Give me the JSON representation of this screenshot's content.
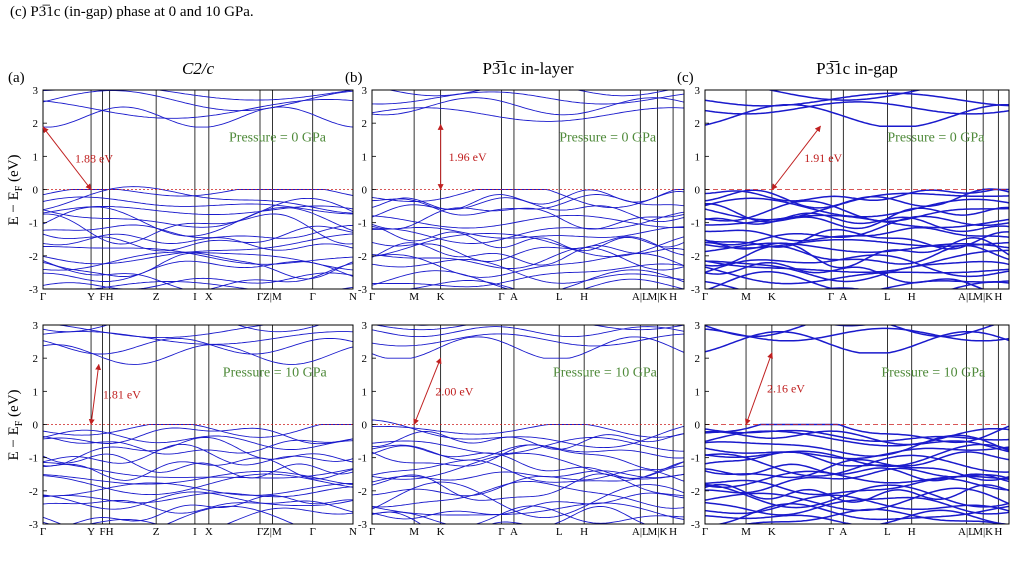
{
  "caption_top": "(c) P3̅1c (in-gap) phase at 0 and 10 GPa.",
  "caption_bottom": "",
  "ylabel": "E − E",
  "ylabel_sub": "F",
  "ylabel_unit": " (eV)",
  "colors": {
    "band": "#1a1acc",
    "fermi": "#cc2020",
    "arrow": "#c02020",
    "pressure": "#4f8a3a"
  },
  "columns": [
    {
      "letter": "(a)",
      "title": "C2/c",
      "title_italic": true
    },
    {
      "letter": "(b)",
      "title": "P3̅1c in-layer",
      "title_italic": false
    },
    {
      "letter": "(c)",
      "title": "P3̅1c in-gap",
      "title_italic": false
    }
  ],
  "chart_data": [
    {
      "type": "line",
      "panel": "a-0GPa",
      "ylim": [
        -3,
        3
      ],
      "yticks": [
        -3,
        -2,
        -1,
        0,
        1,
        2,
        3
      ],
      "kpath": [
        "Γ",
        "Y",
        "F",
        "H",
        "Z",
        "I",
        "X",
        "Γ",
        "Z|M",
        "Γ",
        "N"
      ],
      "annotation": "Pressure = 0 GPa",
      "gap_label": "1.88 eV",
      "gap_eV": 1.88
    },
    {
      "type": "line",
      "panel": "b-0GPa",
      "ylim": [
        -3,
        3
      ],
      "yticks": [
        -3,
        -2,
        -1,
        0,
        1,
        2,
        3
      ],
      "kpath": [
        "Γ",
        "M",
        "K",
        "Γ",
        "A",
        "L",
        "H",
        "A|L",
        "M|K",
        "H"
      ],
      "annotation": "Pressure = 0 GPa",
      "gap_label": "1.96 eV",
      "gap_eV": 1.96
    },
    {
      "type": "line",
      "panel": "c-0GPa",
      "ylim": [
        -3,
        3
      ],
      "yticks": [
        -3,
        -2,
        -1,
        0,
        1,
        2,
        3
      ],
      "kpath": [
        "Γ",
        "M",
        "K",
        "Γ",
        "A",
        "L",
        "H",
        "A|L",
        "M|K",
        "H"
      ],
      "annotation": "Pressure = 0 GPa",
      "gap_label": "1.91 eV",
      "gap_eV": 1.91
    },
    {
      "type": "line",
      "panel": "a-10GPa",
      "ylim": [
        -3,
        3
      ],
      "yticks": [
        -3,
        -2,
        -1,
        0,
        1,
        2,
        3
      ],
      "kpath": [
        "Γ",
        "Y",
        "F",
        "H",
        "Z",
        "I",
        "X",
        "Γ",
        "Z|M",
        "Γ",
        "N"
      ],
      "annotation": "Pressure = 10 GPa",
      "gap_label": "1.81 eV",
      "gap_eV": 1.81
    },
    {
      "type": "line",
      "panel": "b-10GPa",
      "ylim": [
        -3,
        3
      ],
      "yticks": [
        -3,
        -2,
        -1,
        0,
        1,
        2,
        3
      ],
      "kpath": [
        "Γ",
        "M",
        "K",
        "Γ",
        "A",
        "L",
        "H",
        "A|L",
        "M|K",
        "H"
      ],
      "annotation": "Pressure = 10 GPa",
      "gap_label": "2.00 eV",
      "gap_eV": 2.0
    },
    {
      "type": "line",
      "panel": "c-10GPa",
      "ylim": [
        -3,
        3
      ],
      "yticks": [
        -3,
        -2,
        -1,
        0,
        1,
        2,
        3
      ],
      "kpath": [
        "Γ",
        "M",
        "K",
        "Γ",
        "A",
        "L",
        "H",
        "A|L",
        "M|K",
        "H"
      ],
      "annotation": "Pressure = 10 GPa",
      "gap_label": "2.16 eV",
      "gap_eV": 2.16
    }
  ]
}
